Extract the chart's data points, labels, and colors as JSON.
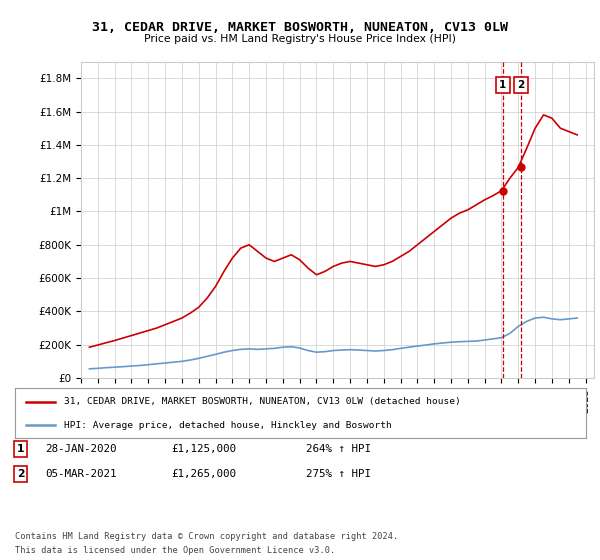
{
  "title": "31, CEDAR DRIVE, MARKET BOSWORTH, NUNEATON, CV13 0LW",
  "subtitle": "Price paid vs. HM Land Registry's House Price Index (HPI)",
  "legend_line1": "31, CEDAR DRIVE, MARKET BOSWORTH, NUNEATON, CV13 0LW (detached house)",
  "legend_line2": "HPI: Average price, detached house, Hinckley and Bosworth",
  "footnote1": "Contains HM Land Registry data © Crown copyright and database right 2024.",
  "footnote2": "This data is licensed under the Open Government Licence v3.0.",
  "annotation1": [
    "1",
    "28-JAN-2020",
    "£1,125,000",
    "264% ↑ HPI"
  ],
  "annotation2": [
    "2",
    "05-MAR-2021",
    "£1,265,000",
    "275% ↑ HPI"
  ],
  "point1_year": 2020.08,
  "point1_value": 1125000,
  "point2_year": 2021.17,
  "point2_value": 1265000,
  "red_color": "#cc0000",
  "blue_color": "#6699cc",
  "ylim": [
    0,
    1900000
  ],
  "xlim_start": 1995,
  "xlim_end": 2025.5,
  "background_color": "#ffffff",
  "grid_color": "#cccccc",
  "hpi_years": [
    1995.5,
    1996.0,
    1996.5,
    1997.0,
    1997.5,
    1998.0,
    1998.5,
    1999.0,
    1999.5,
    2000.0,
    2000.5,
    2001.0,
    2001.5,
    2002.0,
    2002.5,
    2003.0,
    2003.5,
    2004.0,
    2004.5,
    2005.0,
    2005.5,
    2006.0,
    2006.5,
    2007.0,
    2007.5,
    2008.0,
    2008.5,
    2009.0,
    2009.5,
    2010.0,
    2010.5,
    2011.0,
    2011.5,
    2012.0,
    2012.5,
    2013.0,
    2013.5,
    2014.0,
    2014.5,
    2015.0,
    2015.5,
    2016.0,
    2016.5,
    2017.0,
    2017.5,
    2018.0,
    2018.5,
    2019.0,
    2019.5,
    2020.0,
    2020.5,
    2021.0,
    2021.5,
    2022.0,
    2022.5,
    2023.0,
    2023.5,
    2024.0,
    2024.5
  ],
  "hpi_vals": [
    55000,
    58000,
    62000,
    65000,
    68000,
    72000,
    75000,
    80000,
    85000,
    90000,
    95000,
    100000,
    108000,
    118000,
    130000,
    142000,
    155000,
    165000,
    172000,
    175000,
    172000,
    175000,
    178000,
    185000,
    188000,
    180000,
    165000,
    155000,
    158000,
    165000,
    168000,
    170000,
    168000,
    165000,
    162000,
    165000,
    170000,
    178000,
    185000,
    192000,
    198000,
    205000,
    210000,
    215000,
    218000,
    220000,
    222000,
    228000,
    235000,
    242000,
    268000,
    310000,
    340000,
    360000,
    365000,
    355000,
    350000,
    355000,
    360000
  ],
  "prop_years": [
    1995.5,
    1996.0,
    1996.5,
    1997.0,
    1997.5,
    1998.0,
    1998.5,
    1999.0,
    1999.5,
    2000.0,
    2000.5,
    2001.0,
    2001.5,
    2002.0,
    2002.5,
    2003.0,
    2003.5,
    2004.0,
    2004.5,
    2005.0,
    2005.5,
    2006.0,
    2006.5,
    2007.0,
    2007.5,
    2008.0,
    2008.5,
    2009.0,
    2009.5,
    2010.0,
    2010.5,
    2011.0,
    2011.5,
    2012.0,
    2012.5,
    2013.0,
    2013.5,
    2014.0,
    2014.5,
    2015.0,
    2015.5,
    2016.0,
    2016.5,
    2017.0,
    2017.5,
    2018.0,
    2018.5,
    2019.0,
    2019.5,
    2020.0,
    2020.5,
    2021.0,
    2021.5,
    2022.0,
    2022.5,
    2023.0,
    2023.5,
    2024.0,
    2024.5
  ],
  "prop_vals": [
    185000,
    198000,
    212000,
    225000,
    240000,
    255000,
    270000,
    285000,
    300000,
    320000,
    340000,
    360000,
    390000,
    425000,
    480000,
    550000,
    640000,
    720000,
    780000,
    800000,
    760000,
    720000,
    700000,
    720000,
    740000,
    710000,
    660000,
    620000,
    640000,
    670000,
    690000,
    700000,
    690000,
    680000,
    670000,
    680000,
    700000,
    730000,
    760000,
    800000,
    840000,
    880000,
    920000,
    960000,
    990000,
    1010000,
    1040000,
    1070000,
    1095000,
    1125000,
    1200000,
    1265000,
    1380000,
    1500000,
    1580000,
    1560000,
    1500000,
    1480000,
    1460000
  ]
}
